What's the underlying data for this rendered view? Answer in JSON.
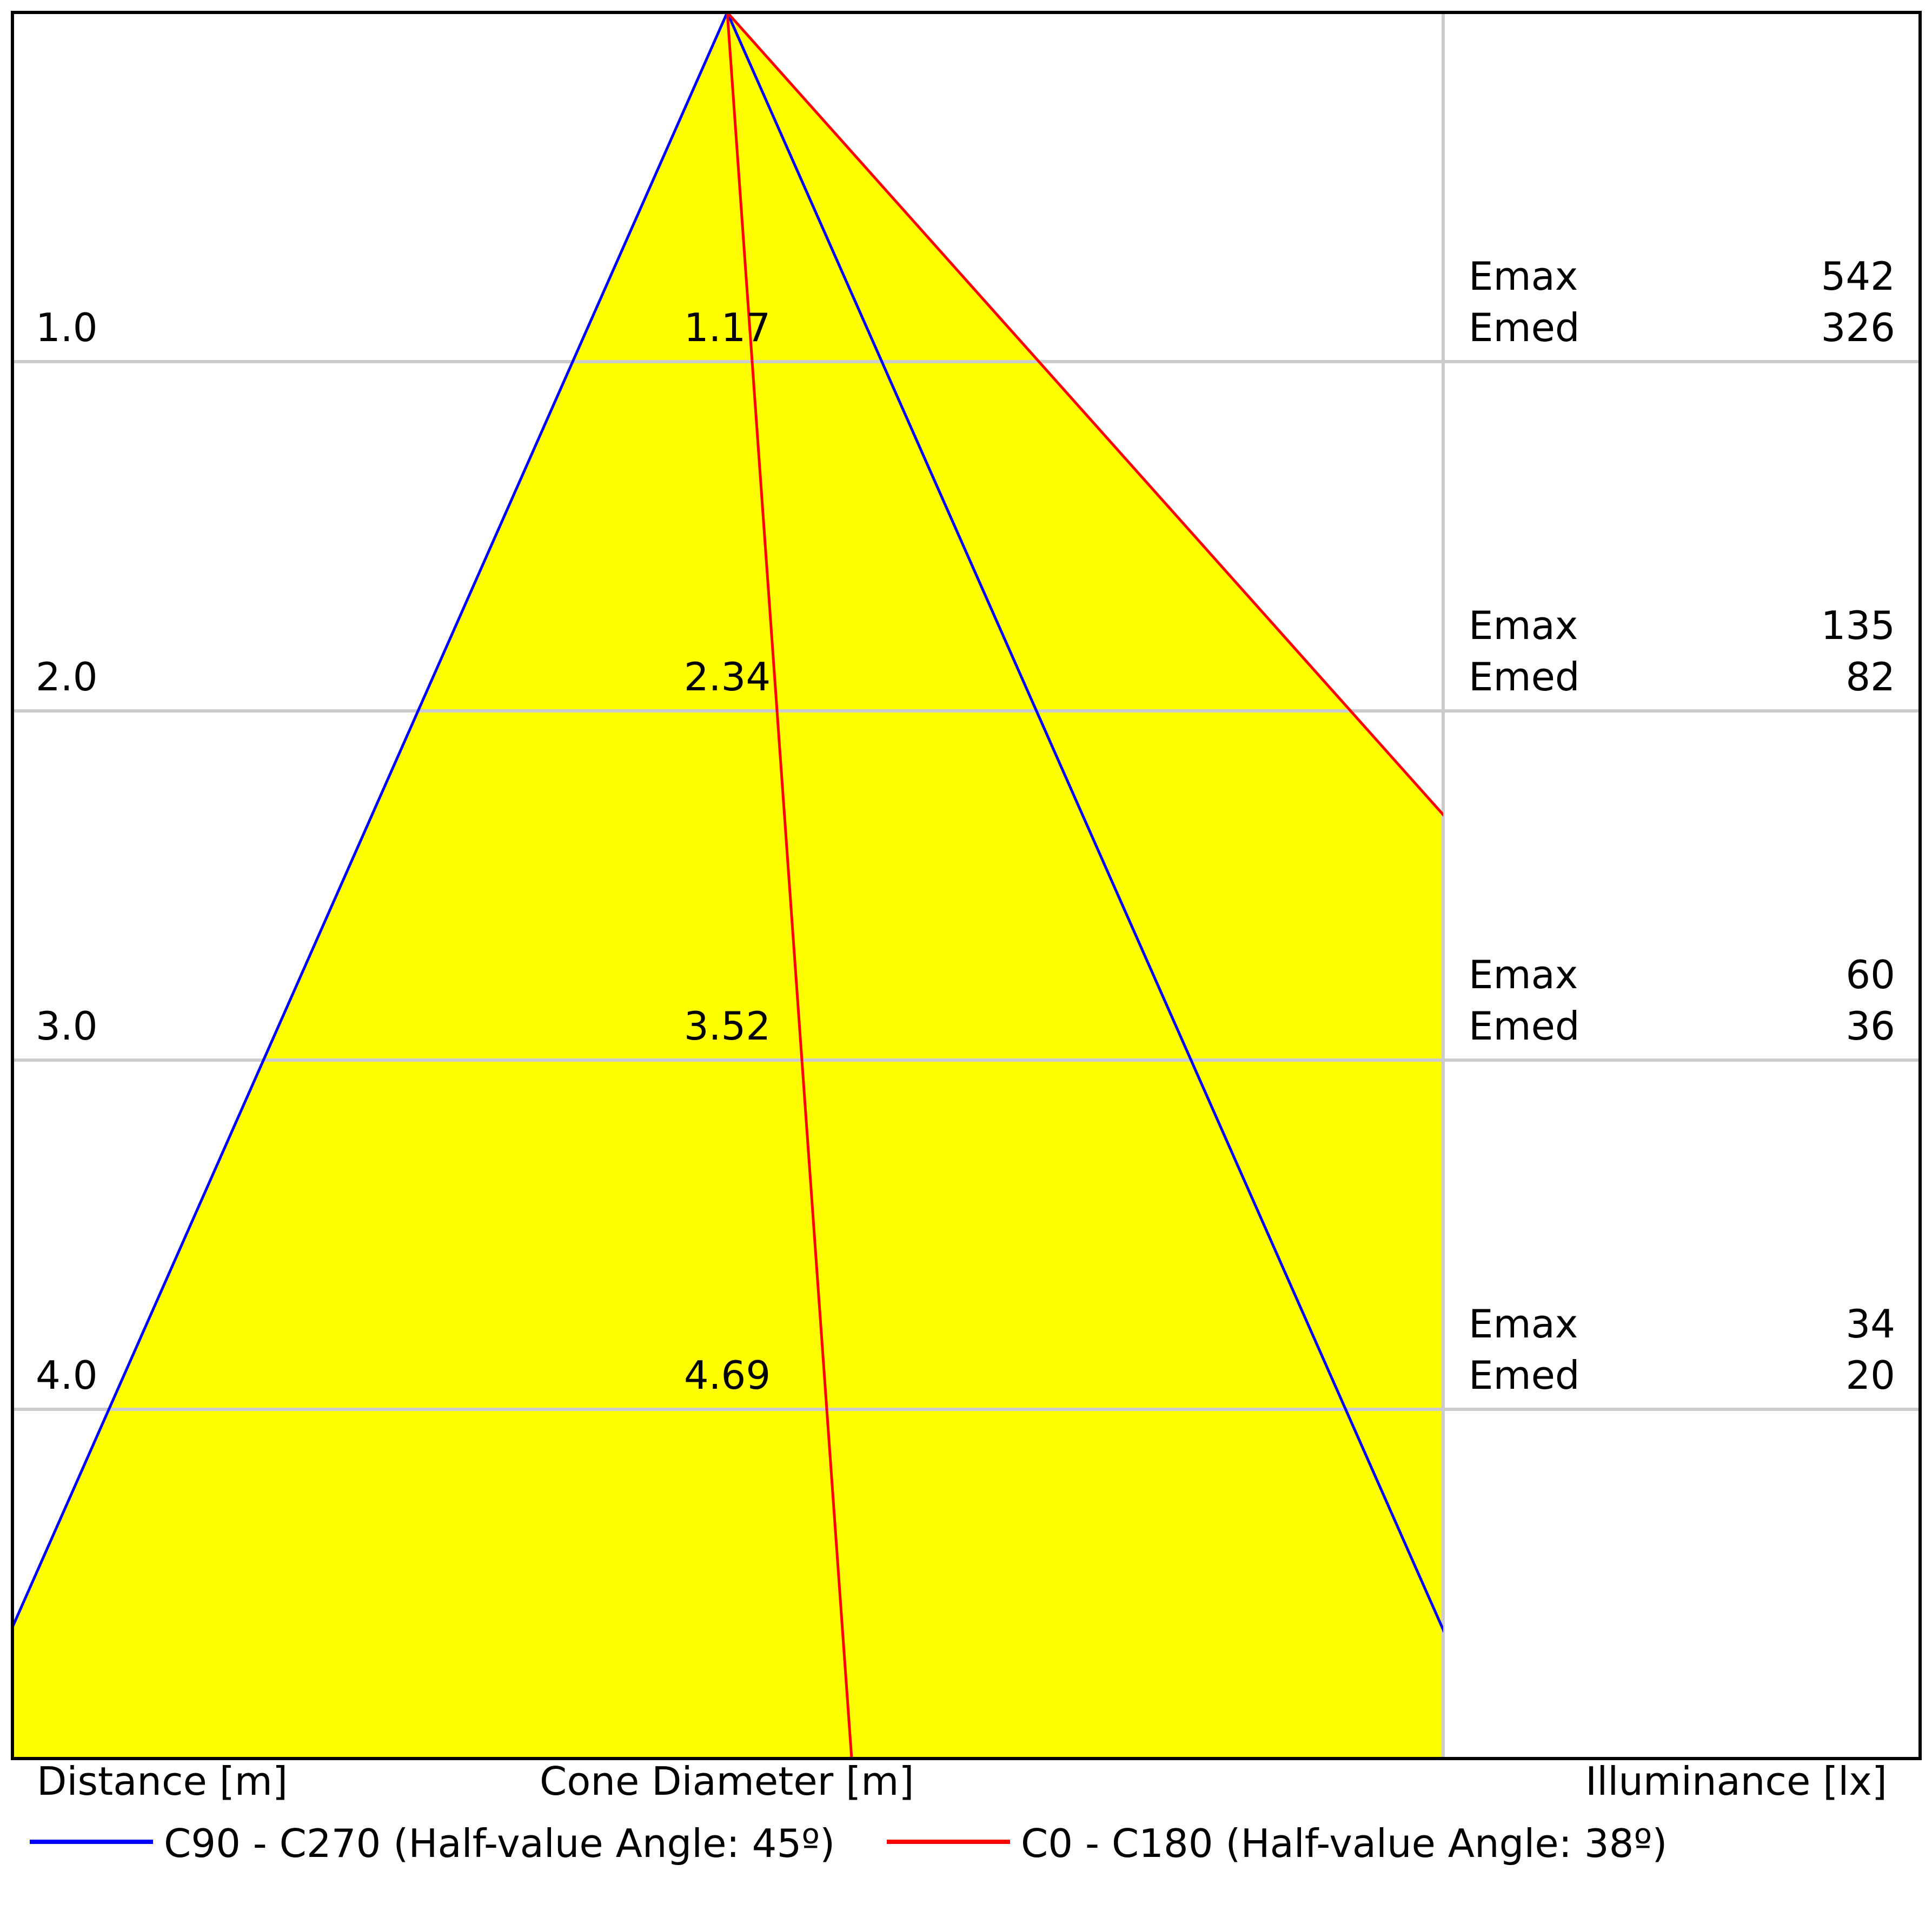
{
  "chart_data": {
    "type": "cone-diagram",
    "xlabel_distance": "Distance [m]",
    "xlabel_diameter": "Cone Diameter [m]",
    "xlabel_illuminance": "Illuminance [lx]",
    "rows": [
      {
        "distance": "1.0",
        "diameter": "1.17",
        "emax_label": "Emax",
        "emax": "542",
        "emed_label": "Emed",
        "emed": "326"
      },
      {
        "distance": "2.0",
        "diameter": "2.34",
        "emax_label": "Emax",
        "emax": "135",
        "emed_label": "Emed",
        "emed": "82"
      },
      {
        "distance": "3.0",
        "diameter": "3.52",
        "emax_label": "Emax",
        "emax": "60",
        "emed_label": "Emed",
        "emed": "36"
      },
      {
        "distance": "4.0",
        "diameter": "4.69",
        "emax_label": "Emax",
        "emax": "34",
        "emed_label": "Emed",
        "emed": "20"
      }
    ],
    "series": [
      {
        "name": "C90 - C270 (Half-value Angle: 45º)",
        "half_angle_deg": 45,
        "color": "#0000ff"
      },
      {
        "name": "C0 - C180 (Half-value Angle: 38º)",
        "half_angle_deg": 38,
        "color": "#ff0000"
      }
    ],
    "fill_color": "#ffff00",
    "grid_color": "#cccccc",
    "distance_range": [
      0,
      5
    ]
  }
}
